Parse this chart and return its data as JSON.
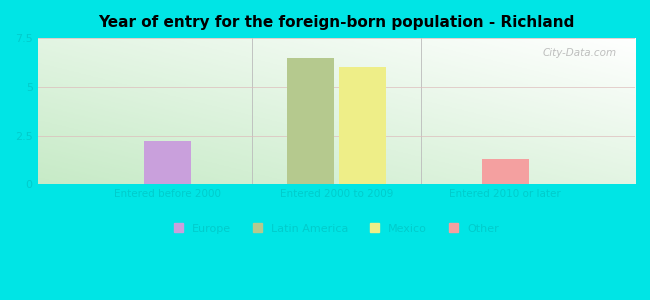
{
  "title": "Year of entry for the foreign-born population - Richland",
  "groups": [
    "Entered before 2000",
    "Entered 2000 to 2009",
    "Entered 2010 or later"
  ],
  "series": [
    "Europe",
    "Latin America",
    "Mexico",
    "Other"
  ],
  "values": {
    "Europe": [
      2.2,
      0.0,
      0.0
    ],
    "Latin America": [
      0.0,
      6.5,
      0.0
    ],
    "Mexico": [
      0.0,
      6.0,
      0.0
    ],
    "Other": [
      0.0,
      0.0,
      1.3
    ]
  },
  "colors": {
    "Europe": "#c9a0dc",
    "Latin America": "#b5c98e",
    "Mexico": "#eeee88",
    "Other": "#f4a0a0"
  },
  "ylim": [
    0,
    7.5
  ],
  "yticks": [
    0,
    2.5,
    5,
    7.5
  ],
  "bg_outer": "#00e5e5",
  "watermark": "City-Data.com",
  "bar_width": 0.18,
  "group_centers": [
    0.35,
    1.0,
    1.65
  ],
  "tick_color": "#00cccc",
  "label_color": "#00cccc"
}
